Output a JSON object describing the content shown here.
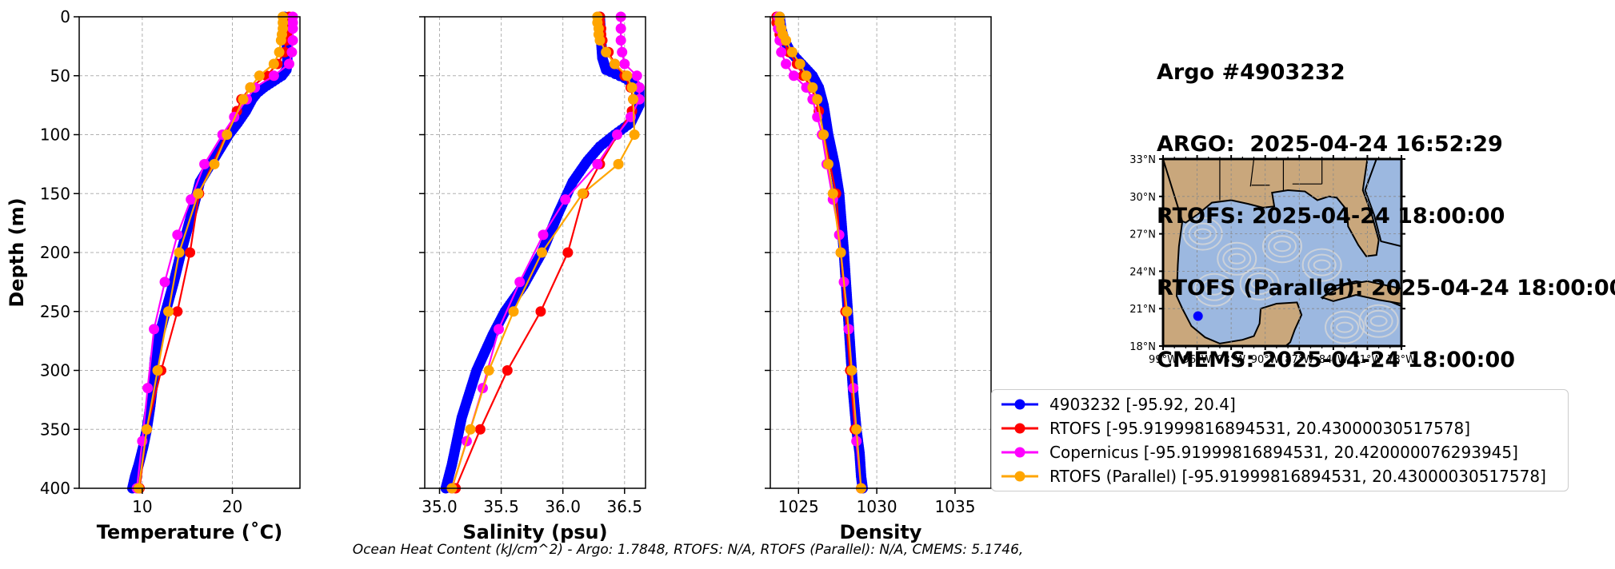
{
  "title_lines": [
    "Argo #4903232",
    "ARGO:  2025-04-24 16:52:29",
    "RTOFS: 2025-04-24 18:00:00",
    "RTOFS (Parallel): 2025-04-24 18:00:00",
    "CMEMS: 2025-04-24 18:00:00"
  ],
  "footer_text": "Ocean Heat Content (kJ/cm^2) - Argo: 1.7848,  RTOFS: N/A,  RTOFS (Parallel): N/A,  CMEMS: 5.1746,",
  "legend": [
    {
      "label": "4903232 [-95.92, 20.4]",
      "color": "#0000ff"
    },
    {
      "label": "RTOFS [-95.91999816894531, 20.43000030517578]",
      "color": "#ff0000"
    },
    {
      "label": "Copernicus [-95.91999816894531, 20.420000076293945]",
      "color": "#ff00ff"
    },
    {
      "label": "RTOFS (Parallel) [-95.91999816894531, 20.43000030517578]",
      "color": "#ffa500"
    }
  ],
  "colors": {
    "argo": "#0000ff",
    "rtofs": "#ff0000",
    "copernicus": "#ff00ff",
    "parallel": "#ffa500",
    "land": "#c9a77c",
    "ocean": "#9cb8e0",
    "streamline": "#d0d4d8",
    "grid": "#b0b0b0"
  },
  "map": {
    "lat_labels": [
      "33°N",
      "30°N",
      "27°N",
      "24°N",
      "21°N",
      "18°N"
    ],
    "lon_labels": [
      "99°W",
      "96°W",
      "93°W",
      "90°W",
      "87°W",
      "84°W",
      "81°W",
      "78°W"
    ],
    "lat_range": [
      18,
      33
    ],
    "lon_range": [
      -99,
      -78
    ],
    "float_position": {
      "lon": -95.92,
      "lat": 20.4
    }
  },
  "chart_data": [
    {
      "type": "line",
      "xlabel": "Temperature (˚C)",
      "ylabel": "Depth (m)",
      "xlim": [
        3,
        27.5
      ],
      "ylim": [
        400,
        0
      ],
      "xticks": [
        10,
        20
      ],
      "yticks": [
        0,
        50,
        100,
        150,
        200,
        250,
        300,
        350,
        400
      ],
      "grid": true,
      "series": [
        {
          "name": "4903232 [-95.92, 20.4]",
          "key": "argo",
          "dense": true,
          "x": [
            25.8,
            25.9,
            26.0,
            26.1,
            26.1,
            26.0,
            25.5,
            24.5,
            23.5,
            22.7,
            22.2,
            21.5,
            20.6,
            19.6,
            18.8,
            17.6,
            16.4,
            15.9,
            15.2,
            14.3,
            13.5,
            12.6,
            11.9,
            11.4,
            11.2,
            10.9,
            10.5,
            10.1,
            9.6,
            9.2,
            8.9
          ],
          "y": [
            0,
            10,
            20,
            30,
            40,
            45,
            50,
            55,
            60,
            65,
            70,
            80,
            90,
            100,
            110,
            125,
            140,
            155,
            175,
            200,
            225,
            250,
            270,
            290,
            310,
            330,
            350,
            365,
            380,
            390,
            400
          ]
        },
        {
          "name": "RTOFS [-95.91999816894531, 20.43000030517578]",
          "key": "rtofs",
          "x": [
            26.3,
            26.3,
            26.2,
            26.1,
            26.0,
            25.8,
            25.0,
            23.8,
            22.0,
            21.0,
            20.5,
            16.3,
            15.3,
            13.9,
            12.1,
            10.5,
            9.7
          ],
          "y": [
            0,
            5,
            10,
            15,
            20,
            30,
            40,
            50,
            60,
            70,
            80,
            150,
            200,
            250,
            300,
            350,
            400
          ]
        },
        {
          "name": "Copernicus [-95.91999816894531, 20.420000076293945]",
          "key": "copernicus",
          "x": [
            26.7,
            26.7,
            26.7,
            26.7,
            26.6,
            26.3,
            24.6,
            22.5,
            21.6,
            20.2,
            18.9,
            16.9,
            15.4,
            13.9,
            12.5,
            11.3,
            10.6,
            10.0,
            9.4
          ],
          "y": [
            0,
            5,
            10,
            20,
            30,
            40,
            50,
            60,
            70,
            85,
            100,
            125,
            155,
            185,
            225,
            265,
            315,
            360,
            400
          ]
        },
        {
          "name": "RTOFS (Parallel) [-95.91999816894531, 20.43000030517578]",
          "key": "parallel",
          "x": [
            25.6,
            25.6,
            25.6,
            25.5,
            25.4,
            25.2,
            24.6,
            23.0,
            22.0,
            21.2,
            19.4,
            18.0,
            16.2,
            14.1,
            12.9,
            11.7,
            10.5,
            9.6
          ],
          "y": [
            0,
            5,
            10,
            15,
            20,
            30,
            40,
            50,
            60,
            70,
            100,
            125,
            150,
            200,
            250,
            300,
            350,
            400
          ]
        }
      ]
    },
    {
      "type": "line",
      "xlabel": "Salinity (psu)",
      "ylabel": "",
      "xlim": [
        34.88,
        36.67
      ],
      "ylim": [
        400,
        0
      ],
      "xticks": [
        35.0,
        35.5,
        36.0,
        36.5
      ],
      "yticks": [
        0,
        50,
        100,
        150,
        200,
        250,
        300,
        350,
        400
      ],
      "grid": true,
      "series": [
        {
          "name": "4903232 [-95.92, 20.4]",
          "key": "argo",
          "dense": true,
          "x": [
            36.3,
            36.31,
            36.32,
            36.35,
            36.5,
            36.62,
            36.62,
            36.55,
            36.42,
            36.3,
            36.2,
            36.08,
            35.97,
            35.83,
            35.68,
            35.53,
            35.43,
            35.3,
            35.18,
            35.1,
            35.05
          ],
          "y": [
            0,
            20,
            35,
            45,
            52,
            60,
            75,
            90,
            100,
            110,
            122,
            140,
            165,
            200,
            228,
            250,
            270,
            300,
            340,
            380,
            400
          ]
        },
        {
          "name": "RTOFS [-95.91999816894531, 20.43000030517578]",
          "key": "rtofs",
          "x": [
            36.3,
            36.3,
            36.31,
            36.31,
            36.32,
            36.37,
            36.42,
            36.5,
            36.55,
            36.57,
            36.56,
            36.3,
            36.17,
            36.04,
            35.82,
            35.55,
            35.33,
            35.13
          ],
          "y": [
            0,
            5,
            10,
            15,
            20,
            30,
            40,
            50,
            60,
            70,
            80,
            125,
            150,
            200,
            250,
            300,
            350,
            400
          ]
        },
        {
          "name": "Copernicus [-95.91999816894531, 20.420000076293945]",
          "key": "copernicus",
          "x": [
            36.47,
            36.47,
            36.47,
            36.48,
            36.5,
            36.6,
            36.62,
            36.62,
            36.55,
            36.44,
            36.28,
            36.02,
            35.84,
            35.65,
            35.48,
            35.35,
            35.22,
            35.1
          ],
          "y": [
            0,
            10,
            20,
            30,
            40,
            50,
            60,
            70,
            85,
            100,
            125,
            155,
            185,
            225,
            265,
            315,
            360,
            400
          ]
        },
        {
          "name": "RTOFS (Parallel) [-95.91999816894531, 20.43000030517578]",
          "key": "parallel",
          "x": [
            36.28,
            36.28,
            36.29,
            36.29,
            36.3,
            36.35,
            36.42,
            36.52,
            36.56,
            36.57,
            36.58,
            36.45,
            36.16,
            35.83,
            35.6,
            35.4,
            35.25,
            35.1
          ],
          "y": [
            0,
            5,
            10,
            15,
            20,
            30,
            40,
            50,
            60,
            70,
            100,
            125,
            150,
            200,
            250,
            300,
            350,
            400
          ]
        }
      ]
    },
    {
      "type": "line",
      "xlabel": "Density",
      "ylabel": "",
      "xlim": [
        1023.2,
        1037.3
      ],
      "ylim": [
        400,
        0
      ],
      "xticks": [
        1025,
        1030,
        1035
      ],
      "yticks": [
        0,
        50,
        100,
        150,
        200,
        250,
        300,
        350,
        400
      ],
      "grid": true,
      "series": [
        {
          "name": "4903232 [-95.92, 20.4]",
          "key": "argo",
          "dense": true,
          "x": [
            1023.8,
            1023.9,
            1024.1,
            1024.5,
            1025.2,
            1025.9,
            1026.3,
            1026.6,
            1026.9,
            1027.3,
            1027.6,
            1027.9,
            1028.1,
            1028.3,
            1028.5,
            1028.7,
            1028.9,
            1029.0,
            1029.1
          ],
          "y": [
            0,
            10,
            20,
            30,
            40,
            50,
            60,
            75,
            100,
            125,
            150,
            200,
            240,
            280,
            320,
            350,
            370,
            390,
            400
          ]
        },
        {
          "name": "RTOFS [-95.91999816894531, 20.43000030517578]",
          "key": "rtofs",
          "x": [
            1023.6,
            1023.6,
            1023.7,
            1023.8,
            1024.0,
            1024.4,
            1024.9,
            1025.3,
            1025.8,
            1026.1,
            1026.3,
            1027.4,
            1027.7,
            1028.0,
            1028.3,
            1028.6,
            1029.0
          ],
          "y": [
            0,
            5,
            10,
            15,
            20,
            30,
            40,
            50,
            60,
            70,
            80,
            150,
            200,
            250,
            300,
            350,
            400
          ]
        },
        {
          "name": "Copernicus [-95.91999816894531, 20.420000076293945]",
          "key": "copernicus",
          "x": [
            1023.7,
            1023.7,
            1023.8,
            1023.9,
            1024.2,
            1024.7,
            1025.5,
            1025.9,
            1026.2,
            1026.5,
            1026.8,
            1027.2,
            1027.6,
            1027.9,
            1028.2,
            1028.5,
            1028.7,
            1029.0
          ],
          "y": [
            0,
            10,
            20,
            30,
            40,
            50,
            60,
            70,
            85,
            100,
            125,
            155,
            185,
            225,
            265,
            315,
            360,
            400
          ]
        },
        {
          "name": "RTOFS (Parallel) [-95.91999816894531, 20.43000030517578]",
          "key": "parallel",
          "x": [
            1023.8,
            1023.8,
            1023.9,
            1024.0,
            1024.2,
            1024.6,
            1025.1,
            1025.5,
            1025.9,
            1026.2,
            1026.6,
            1026.9,
            1027.2,
            1027.7,
            1028.1,
            1028.4,
            1028.7,
            1029.0
          ],
          "y": [
            0,
            5,
            10,
            15,
            20,
            30,
            40,
            50,
            60,
            70,
            100,
            125,
            150,
            200,
            250,
            300,
            350,
            400
          ]
        }
      ]
    }
  ]
}
